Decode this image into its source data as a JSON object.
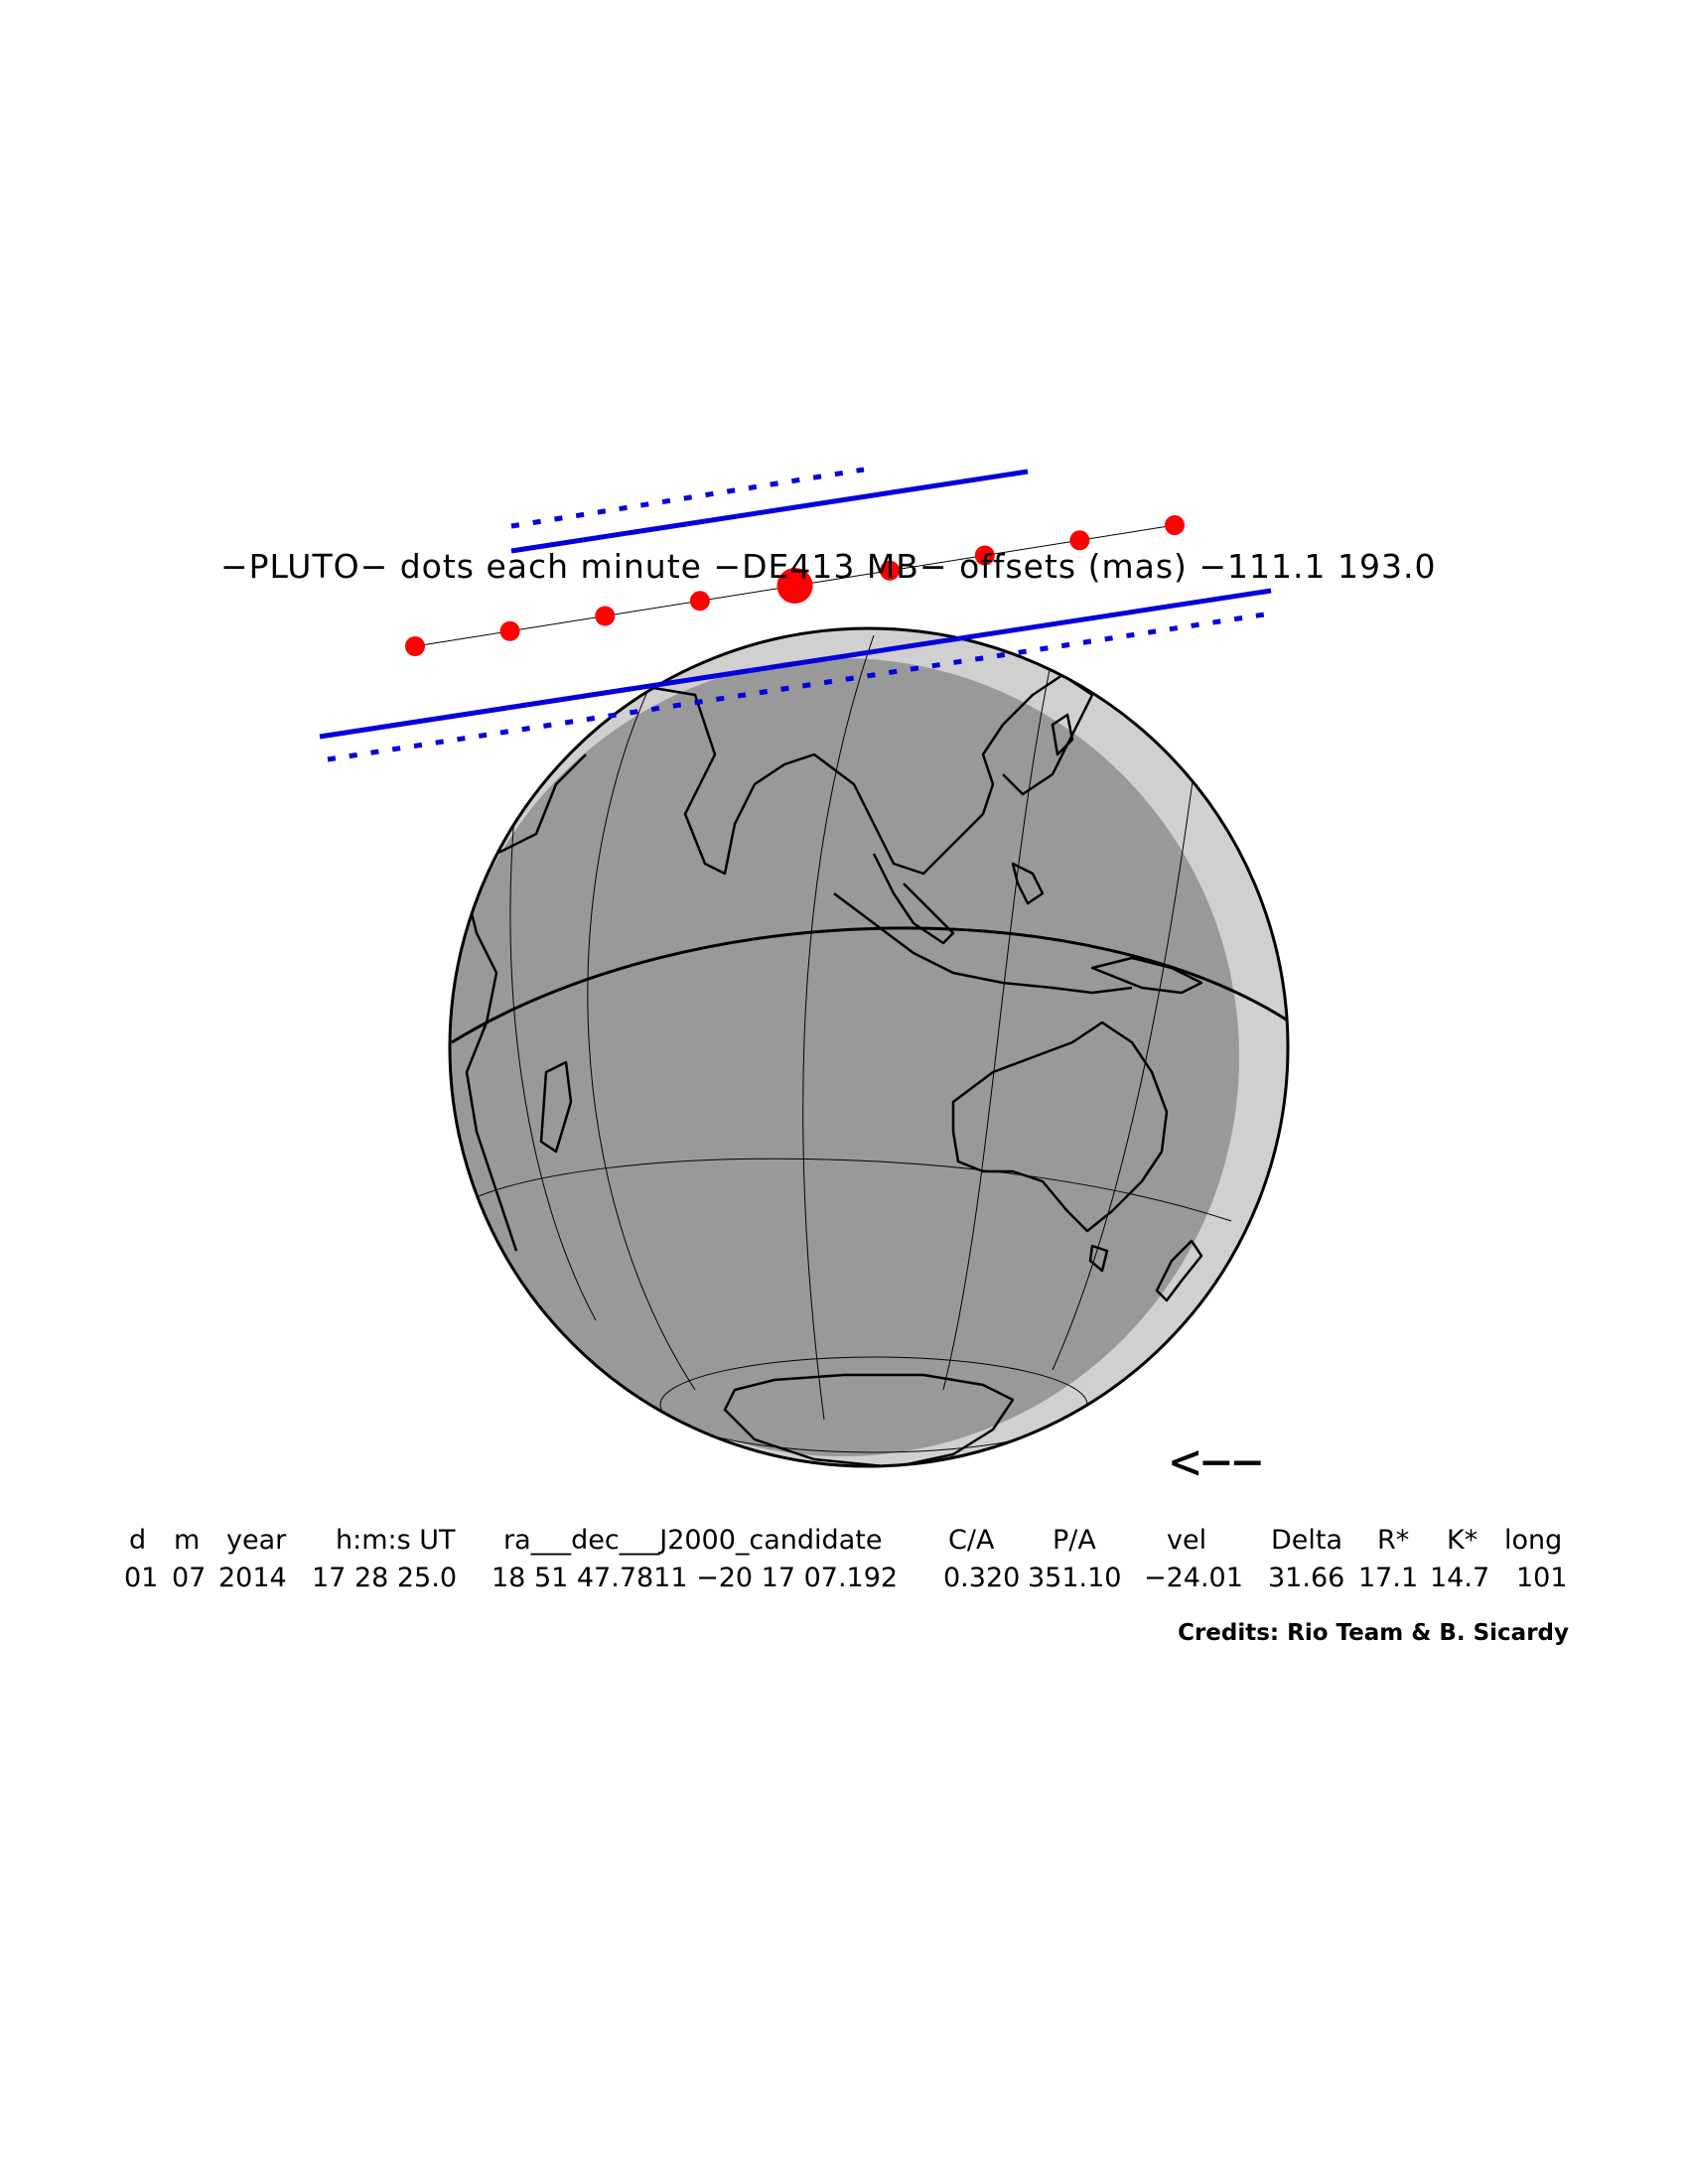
{
  "title": "−PLUTO−  dots  each  minute  −DE413  MB−  offsets  (mas)  −111.1    193.0",
  "direction_arrow": "<−−",
  "table": {
    "headers": [
      "d",
      "m",
      "year",
      "h:m:s UT",
      "ra___dec___J2000_candidate",
      "C/A",
      "P/A",
      "vel",
      "Delta",
      "R*",
      "K*",
      "long"
    ],
    "values": [
      "01",
      "07",
      "2014",
      "17  28  25.0",
      "18  51  47.7811  −20  17  07.192",
      "0.320",
      "351.10",
      "−24.01",
      "31.66",
      "17.1",
      "14.7",
      "101"
    ]
  },
  "credits": "Credits:  Rio Team  &  B. Sicardy",
  "colors": {
    "shadow_path": "#0000dd",
    "pluto_dots": "#ff0000",
    "earth_day": "#999999",
    "earth_twilight": "#d0d0d0",
    "coastlines": "#000000",
    "graticule": "#000000"
  },
  "chart_data": {
    "type": "occultation-map",
    "body": "PLUTO",
    "ephemeris": "DE413",
    "dot_interval": "each minute",
    "offsets_mas": [
      -111.1,
      193.0
    ],
    "dot_count": 9,
    "closest_approach_dot_index": 4,
    "shadow_path_lines": [
      "solid north limit",
      "dotted north limit",
      "solid south limit",
      "dotted south limit"
    ],
    "motion_direction": "westward"
  }
}
